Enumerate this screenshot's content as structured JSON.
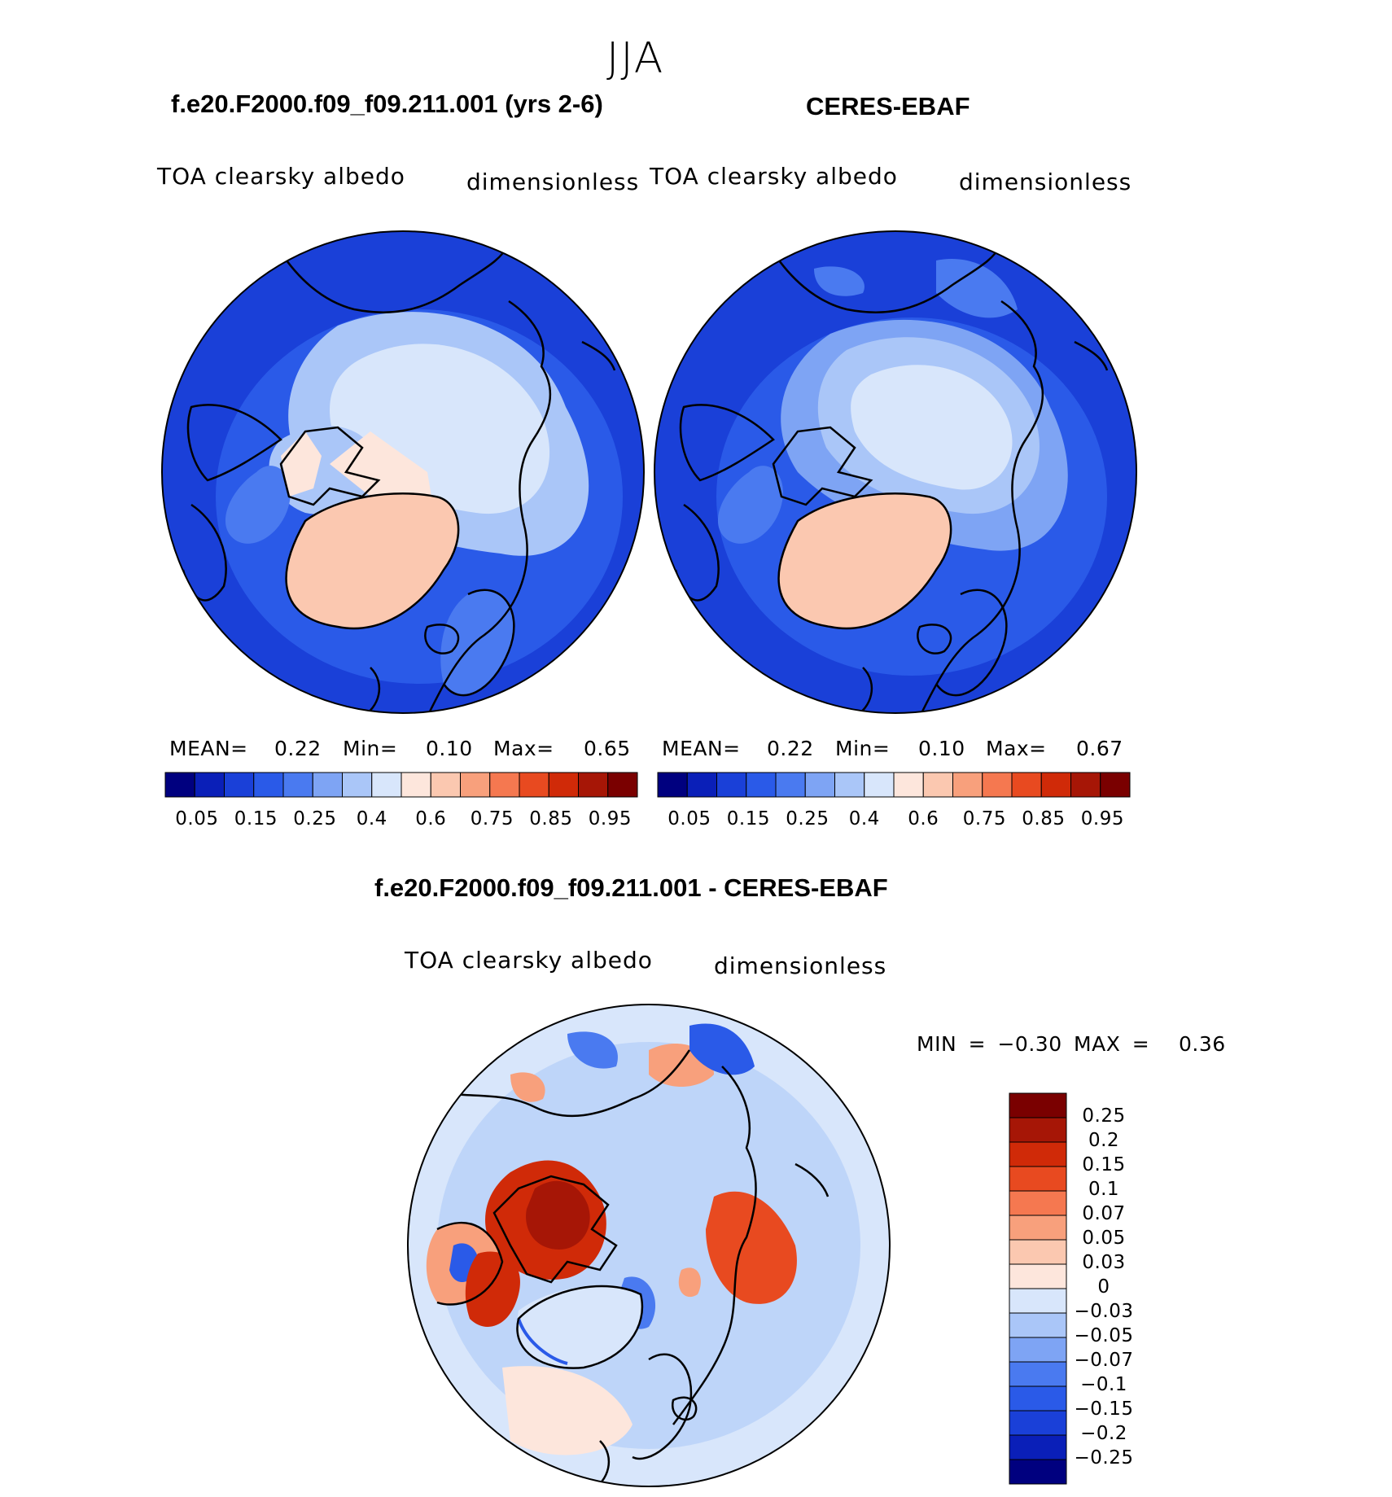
{
  "page": {
    "season": "JJA",
    "bottom_title": "f.e20.F2000.f09_f09.211.001 - CERES-EBAF"
  },
  "palettes": {
    "absolute": [
      "#00007f",
      "#0a1fb8",
      "#1a40d8",
      "#2a5ae8",
      "#4a7af0",
      "#7ea4f4",
      "#aac6f8",
      "#d8e6fb",
      "#fde6dc",
      "#fbc8b0",
      "#f8a07c",
      "#f57850",
      "#e84a20",
      "#d02a08",
      "#a61606",
      "#7a0000"
    ],
    "difference": [
      "#00007f",
      "#0a1fb8",
      "#1a40d8",
      "#2a5ae8",
      "#4a7af0",
      "#7ea4f4",
      "#aac6f8",
      "#d8e6fb",
      "#fde6dc",
      "#fbc8b0",
      "#f8a07c",
      "#f57850",
      "#e84a20",
      "#d02a08",
      "#a61606",
      "#7a0000"
    ]
  },
  "chart_data": [
    {
      "type": "heatmap",
      "projection": "north-polar-stereographic",
      "title": "f.e20.F2000.f09_f09.211.001 (yrs 2-6)",
      "variable": "TOA clearsky albedo",
      "units": "dimensionless",
      "mean_label": "MEAN=",
      "mean": "0.22",
      "min_label": "Min=",
      "min": "0.10",
      "max_label": "Max=",
      "max": "0.65",
      "colorbar_ticks": [
        "0.05",
        "0.15",
        "0.25",
        "0.4",
        "0.6",
        "0.75",
        "0.85",
        "0.95"
      ]
    },
    {
      "type": "heatmap",
      "projection": "north-polar-stereographic",
      "title": "CERES-EBAF",
      "variable": "TOA clearsky albedo",
      "units": "dimensionless",
      "mean_label": "MEAN=",
      "mean": "0.22",
      "min_label": "Min=",
      "min": "0.10",
      "max_label": "Max=",
      "max": "0.67",
      "colorbar_ticks": [
        "0.05",
        "0.15",
        "0.25",
        "0.4",
        "0.6",
        "0.75",
        "0.85",
        "0.95"
      ]
    },
    {
      "type": "heatmap",
      "projection": "north-polar-stereographic",
      "title": "f.e20.F2000.f09_f09.211.001 - CERES-EBAF",
      "variable": "TOA clearsky albedo",
      "units": "dimensionless",
      "min_text": "MIN = −0.30 MAX =",
      "max": "0.36",
      "colorbar_ticks": [
        "0.25",
        "0.2",
        "0.15",
        "0.1",
        "0.07",
        "0.05",
        "0.03",
        "0",
        "−0.03",
        "−0.05",
        "−0.07",
        "−0.1",
        "−0.15",
        "−0.2",
        "−0.25"
      ]
    }
  ]
}
